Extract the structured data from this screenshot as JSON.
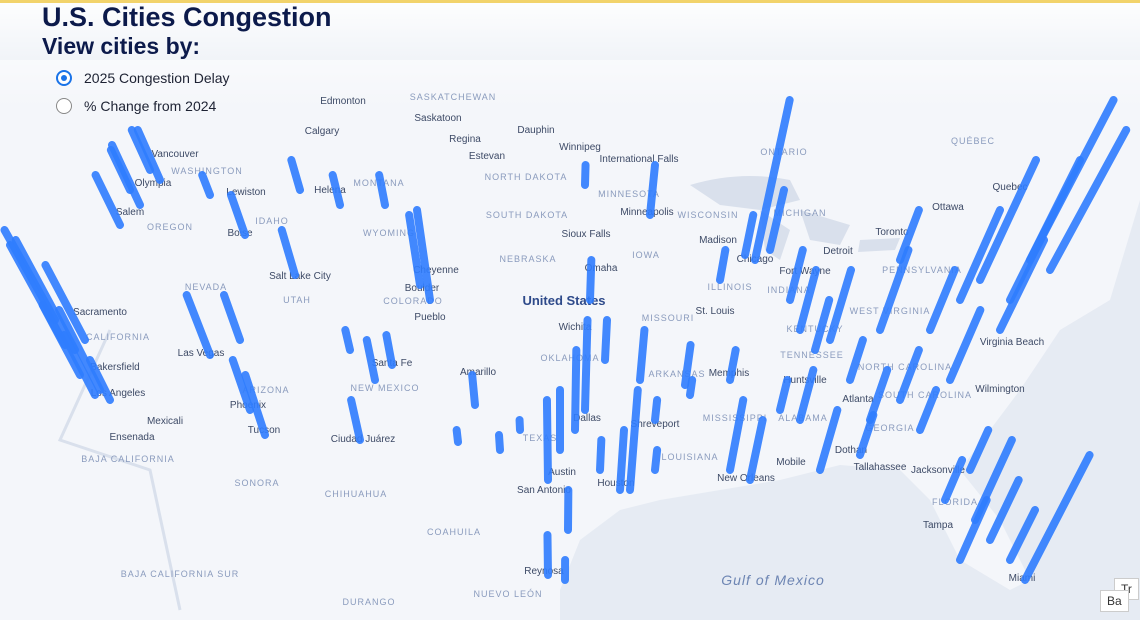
{
  "header": {
    "title": "U.S. Cities Congestion",
    "subtitle": "View cities by:"
  },
  "options": [
    {
      "label": "2025 Congestion Delay",
      "selected": true
    },
    {
      "label": "% Change from 2024",
      "selected": false
    }
  ],
  "map": {
    "regions": [
      "SASKATCHEWAN",
      "ONTARIO",
      "QUÉBEC",
      "WASHINGTON",
      "MONTANA",
      "NORTH DAKOTA",
      "MINNESOTA",
      "OREGON",
      "IDAHO",
      "WYOMING",
      "SOUTH DAKOTA",
      "WISCONSIN",
      "MICHIGAN",
      "NEVADA",
      "NEBRASKA",
      "IOWA",
      "PENNSYLVANIA",
      "UTAH",
      "COLORADO",
      "ILLINOIS",
      "INDIANA",
      "MISSOURI",
      "KENTUCKY",
      "WEST VIRGINIA",
      "CALIFORNIA",
      "OKLAHOMA",
      "ARKANSAS",
      "TENNESSEE",
      "NORTH CAROLINA",
      "NEW MEXICO",
      "ARIZONA",
      "SOUTH CAROLINA",
      "MISSISSIPPI",
      "ALABAMA",
      "GEORGIA",
      "TEXAS",
      "LOUISIANA",
      "FLORIDA",
      "BAJA CALIFORNIA",
      "SONORA",
      "CHIHUAHUA",
      "COAHUILA",
      "NUEVO LEÓN",
      "DURANGO",
      "BAJA CALIFORNIA SUR"
    ],
    "cities": [
      "Edmonton",
      "Saskatoon",
      "Calgary",
      "Regina",
      "Dauphin",
      "Winnipeg",
      "Estevan",
      "International Falls",
      "Vancouver",
      "Olympia",
      "Lewiston",
      "Helena",
      "Salem",
      "Boise",
      "Minneapolis",
      "Quebec",
      "Ottawa",
      "Toronto",
      "Sioux Falls",
      "Madison",
      "Chicago",
      "Detroit",
      "Salt Lake City",
      "Cheyenne",
      "Omaha",
      "Fort Wayne",
      "Boulder",
      "Sacramento",
      "Pueblo",
      "Wichita",
      "St. Louis",
      "Las Vegas",
      "Santa Fe",
      "Amarillo",
      "Memphis",
      "Virginia Beach",
      "Bakersfield",
      "Los Angeles",
      "Phoenix",
      "Huntsville",
      "Atlanta",
      "Wilmington",
      "Dallas",
      "Shreveport",
      "Tucson",
      "Ciudad Juárez",
      "Dothan",
      "Tallahassee",
      "Mobile",
      "Jacksonville",
      "Austin",
      "New Orleans",
      "Houston",
      "San Antonio",
      "Tampa",
      "Miami",
      "Reynosa",
      "Mexicali",
      "Ensenada"
    ],
    "country": "United States",
    "water": "Gulf of Mexico"
  },
  "controls": [
    "Tr",
    "Ba"
  ]
}
